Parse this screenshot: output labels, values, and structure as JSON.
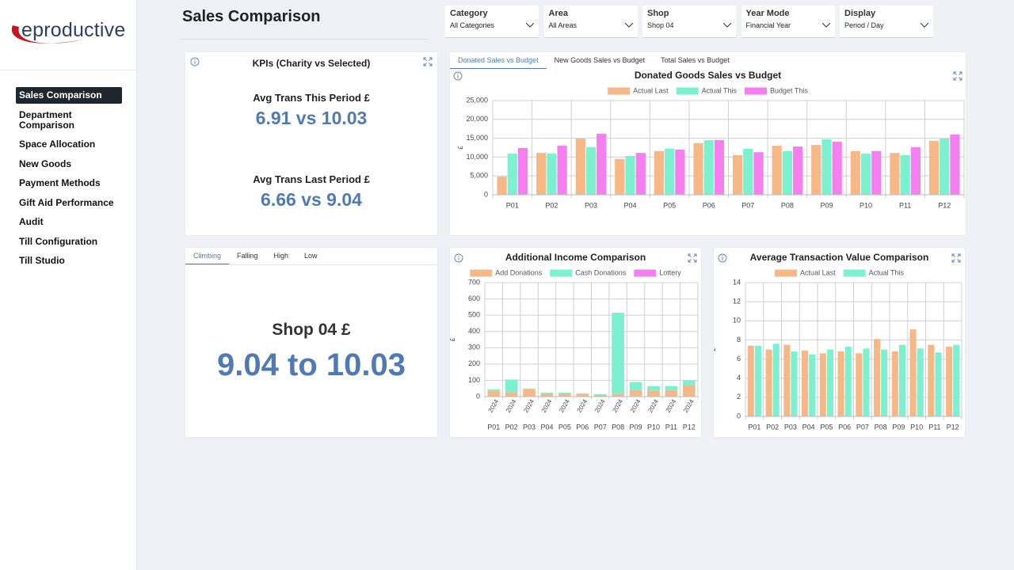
{
  "brand": "eproductive",
  "nav": [
    "Sales Comparison",
    "Department Comparison",
    "Space Allocation",
    "New Goods",
    "Payment Methods",
    "Gift Aid Performance",
    "Audit",
    "Till Configuration",
    "Till Studio"
  ],
  "page_title": "Sales Comparison",
  "filters": [
    {
      "label": "Category",
      "value": "All Categories"
    },
    {
      "label": "Area",
      "value": "All Areas"
    },
    {
      "label": "Shop",
      "value": "Shop 04"
    },
    {
      "label": "Year Mode",
      "value": "Financial Year"
    },
    {
      "label": "Display",
      "value": "Period / Day"
    }
  ],
  "kpi": {
    "title": "KPIs (Charity vs Selected)",
    "items": [
      {
        "label": "Avg Trans This Period £",
        "value": "6.91 vs 10.03"
      },
      {
        "label": "Avg Trans Last Period £",
        "value": "6.66 vs 9.04"
      }
    ]
  },
  "trend": {
    "tabs": [
      "Climbing",
      "Falling",
      "High",
      "Low"
    ],
    "label": "Shop 04 £",
    "value": "9.04 to 10.03"
  },
  "sales_tabs": [
    "Donated Sales vs Budget",
    "New Goods Sales vs Budget",
    "Total Sales vs Budget"
  ],
  "chart_data": [
    {
      "type": "bar",
      "title": "Donated Goods Sales vs Budget",
      "y_label": "£",
      "categories": [
        "P01",
        "P02",
        "P03",
        "P04",
        "P05",
        "P06",
        "P07",
        "P08",
        "P09",
        "P10",
        "P11",
        "P12"
      ],
      "series": [
        {
          "name": "Actual Last",
          "color": "#f6b887",
          "values": [
            4800,
            11100,
            14900,
            9500,
            11600,
            13700,
            10500,
            13000,
            13200,
            11600,
            11100,
            14300
          ]
        },
        {
          "name": "Actual This",
          "color": "#7df0d0",
          "values": [
            10900,
            10900,
            12600,
            10300,
            12200,
            14500,
            12200,
            11600,
            14700,
            10900,
            10500,
            14900
          ]
        },
        {
          "name": "Budget This",
          "color": "#f67ff0",
          "values": [
            12400,
            13000,
            16200,
            11100,
            12000,
            14500,
            11300,
            12800,
            14100,
            11600,
            12600,
            16000
          ]
        }
      ],
      "ylim": [
        0,
        25000
      ],
      "yticks": [
        0,
        {
          "value": 5000,
          "label": "5,000"
        },
        {
          "value": 10000,
          "label": "10,000"
        },
        {
          "value": 15000,
          "label": "15,000"
        },
        {
          "value": 20000,
          "label": "20,000"
        },
        {
          "value": 25000,
          "label": "25,000"
        }
      ],
      "grid": true
    },
    {
      "type": "stacked_bar",
      "title": "Additional Income Comparison",
      "y_label": "£",
      "categories": [
        "P01",
        "P02",
        "P03",
        "P04",
        "P05",
        "P06",
        "P07",
        "P08",
        "P09",
        "P10",
        "P11",
        "P12"
      ],
      "sub_labels": [
        "2024",
        "2024",
        "2024",
        "2024",
        "2024",
        "2024",
        "2024",
        "2024",
        "2024",
        "2024",
        "2024",
        "2024"
      ],
      "series": [
        {
          "name": "Add Donations",
          "color": "#f6b887",
          "values": [
            35,
            25,
            45,
            20,
            20,
            15,
            10,
            15,
            40,
            35,
            40,
            70
          ]
        },
        {
          "name": "Cash Donations",
          "color": "#7df0d0",
          "values": [
            10,
            80,
            5,
            5,
            5,
            5,
            5,
            500,
            50,
            30,
            25,
            30
          ]
        },
        {
          "name": "Lottery",
          "color": "#f67ff0",
          "values": [
            0,
            0,
            0,
            0,
            0,
            0,
            0,
            0,
            0,
            0,
            0,
            0
          ]
        }
      ],
      "ylim": [
        0,
        700
      ],
      "yticks": [
        0,
        100,
        200,
        300,
        400,
        500,
        600,
        700
      ],
      "grid": true
    },
    {
      "type": "bar",
      "title": "Average Transaction Value Comparison",
      "y_label": "£",
      "categories": [
        "P01",
        "P02",
        "P03",
        "P04",
        "P05",
        "P06",
        "P07",
        "P08",
        "P09",
        "P10",
        "P11",
        "P12"
      ],
      "series": [
        {
          "name": "Actual Last",
          "color": "#f6b887",
          "values": [
            7.4,
            7.0,
            7.5,
            6.9,
            6.6,
            6.8,
            6.6,
            8.1,
            6.8,
            9.1,
            7.5,
            7.3
          ]
        },
        {
          "name": "Actual This",
          "color": "#7df0d0",
          "values": [
            7.4,
            7.6,
            6.8,
            6.5,
            7.0,
            7.3,
            7.1,
            7.0,
            7.5,
            7.1,
            6.7,
            7.5
          ]
        }
      ],
      "ylim": [
        0,
        14
      ],
      "yticks": [
        0,
        2,
        4,
        6,
        8,
        10,
        12,
        14
      ],
      "grid": true
    }
  ]
}
